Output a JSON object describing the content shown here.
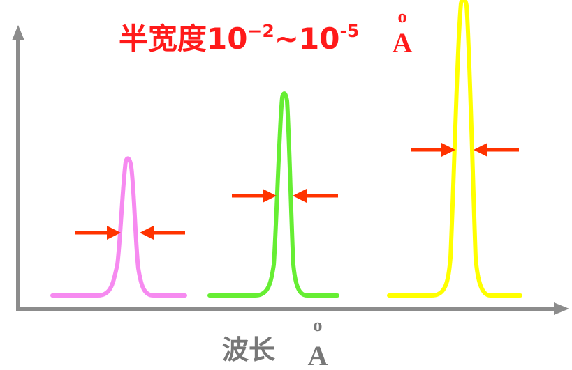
{
  "title": {
    "prefix": "半宽度10",
    "exp1": "−2",
    "tilde": "~10",
    "exp2": "-5",
    "unit_ring": "o",
    "unit_letter": "A"
  },
  "xaxis": {
    "label": "波长",
    "unit_ring": "o",
    "unit_letter": "A"
  },
  "colors": {
    "axis": "#8c8c8c",
    "title": "#ff1a1a",
    "arrow": "#ff3300",
    "peak_pink": "#f68af0",
    "peak_green": "#66ee33",
    "peak_yellow": "#ffff00",
    "unit_text": "#777777"
  },
  "peaks": [
    {
      "name": "pink",
      "color": "#f68af0",
      "height": 0.55
    },
    {
      "name": "green",
      "color": "#66ee33",
      "height": 0.75
    },
    {
      "name": "yellow",
      "color": "#ffff00",
      "height": 1.0
    }
  ]
}
